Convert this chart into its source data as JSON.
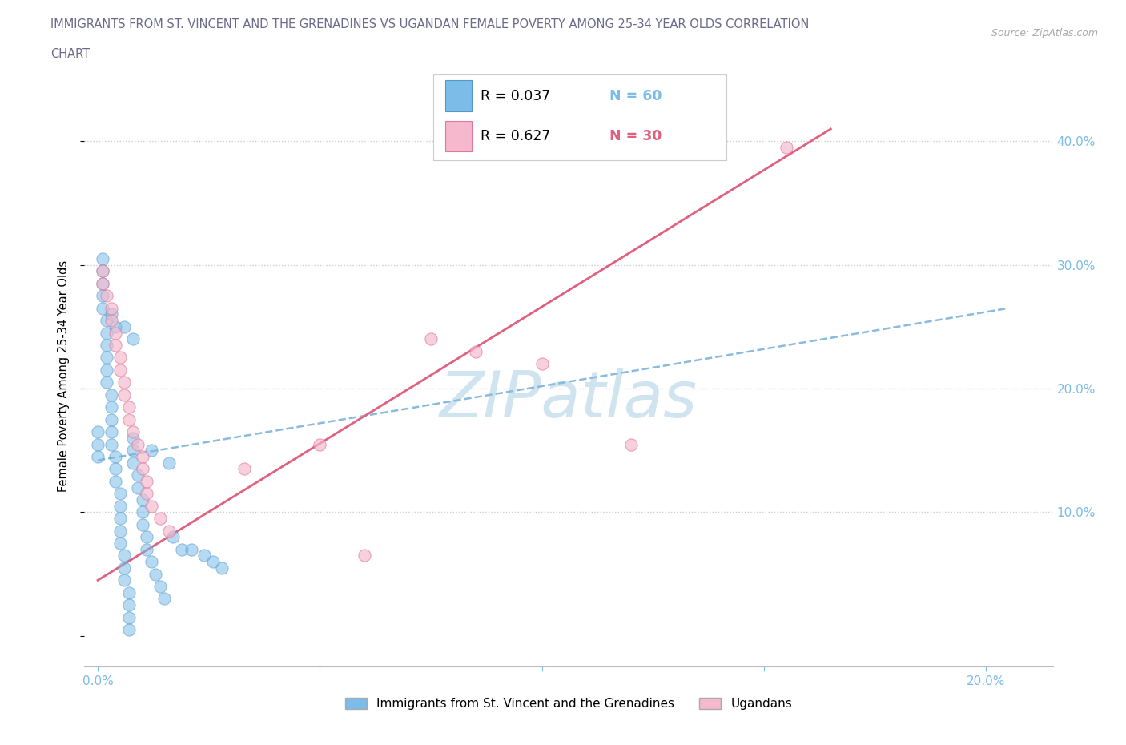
{
  "title_line1": "IMMIGRANTS FROM ST. VINCENT AND THE GRENADINES VS UGANDAN FEMALE POVERTY AMONG 25-34 YEAR OLDS CORRELATION",
  "title_line2": "CHART",
  "source_text": "Source: ZipAtlas.com",
  "xlim": [
    -0.003,
    0.215
  ],
  "ylim": [
    -0.025,
    0.445
  ],
  "blue_color": "#7bbce8",
  "blue_edge_color": "#5599cc",
  "pink_color": "#f5b8cc",
  "pink_edge_color": "#e07898",
  "blue_line_color": "#88bbdd",
  "pink_line_color": "#e06080",
  "watermark": "ZIPatlas",
  "watermark_color": "#d0e4f0",
  "watermark_fontsize": 58,
  "ylabel": "Female Poverty Among 25-34 Year Olds",
  "grid_color": "#cccccc",
  "title_color": "#6a6a8a",
  "tick_color": "#7bbce8",
  "blue_scatter_x": [
    0.0,
    0.0,
    0.0,
    0.001,
    0.001,
    0.001,
    0.001,
    0.001,
    0.002,
    0.002,
    0.002,
    0.002,
    0.002,
    0.002,
    0.003,
    0.003,
    0.003,
    0.003,
    0.003,
    0.004,
    0.004,
    0.004,
    0.005,
    0.005,
    0.005,
    0.005,
    0.005,
    0.006,
    0.006,
    0.006,
    0.007,
    0.007,
    0.007,
    0.007,
    0.008,
    0.008,
    0.008,
    0.009,
    0.009,
    0.01,
    0.01,
    0.01,
    0.011,
    0.011,
    0.012,
    0.013,
    0.014,
    0.015,
    0.017,
    0.019,
    0.021,
    0.024,
    0.026,
    0.028,
    0.003,
    0.004,
    0.006,
    0.008,
    0.012,
    0.016
  ],
  "blue_scatter_y": [
    0.165,
    0.155,
    0.145,
    0.305,
    0.295,
    0.285,
    0.275,
    0.265,
    0.255,
    0.245,
    0.235,
    0.225,
    0.215,
    0.205,
    0.195,
    0.185,
    0.175,
    0.165,
    0.155,
    0.145,
    0.135,
    0.125,
    0.115,
    0.105,
    0.095,
    0.085,
    0.075,
    0.065,
    0.055,
    0.045,
    0.035,
    0.025,
    0.015,
    0.005,
    0.16,
    0.15,
    0.14,
    0.13,
    0.12,
    0.11,
    0.1,
    0.09,
    0.08,
    0.07,
    0.06,
    0.05,
    0.04,
    0.03,
    0.08,
    0.07,
    0.07,
    0.065,
    0.06,
    0.055,
    0.26,
    0.25,
    0.25,
    0.24,
    0.15,
    0.14
  ],
  "pink_scatter_x": [
    0.001,
    0.001,
    0.002,
    0.003,
    0.003,
    0.004,
    0.004,
    0.005,
    0.005,
    0.006,
    0.006,
    0.007,
    0.007,
    0.008,
    0.009,
    0.01,
    0.01,
    0.011,
    0.011,
    0.012,
    0.014,
    0.016,
    0.033,
    0.05,
    0.06,
    0.075,
    0.085,
    0.1,
    0.12,
    0.155
  ],
  "pink_scatter_y": [
    0.295,
    0.285,
    0.275,
    0.265,
    0.255,
    0.245,
    0.235,
    0.225,
    0.215,
    0.205,
    0.195,
    0.185,
    0.175,
    0.165,
    0.155,
    0.145,
    0.135,
    0.125,
    0.115,
    0.105,
    0.095,
    0.085,
    0.135,
    0.155,
    0.065,
    0.24,
    0.23,
    0.22,
    0.155,
    0.395
  ],
  "blue_trend_x": [
    0.0,
    0.205
  ],
  "blue_trend_y": [
    0.142,
    0.265
  ],
  "pink_trend_x": [
    0.0,
    0.165
  ],
  "pink_trend_y": [
    0.045,
    0.41
  ],
  "legend_items": [
    {
      "color": "#7bbce8",
      "R": "R = 0.037",
      "N": "N = 60"
    },
    {
      "color": "#f5b8cc",
      "R": "R = 0.627",
      "N": "N = 30"
    }
  ]
}
